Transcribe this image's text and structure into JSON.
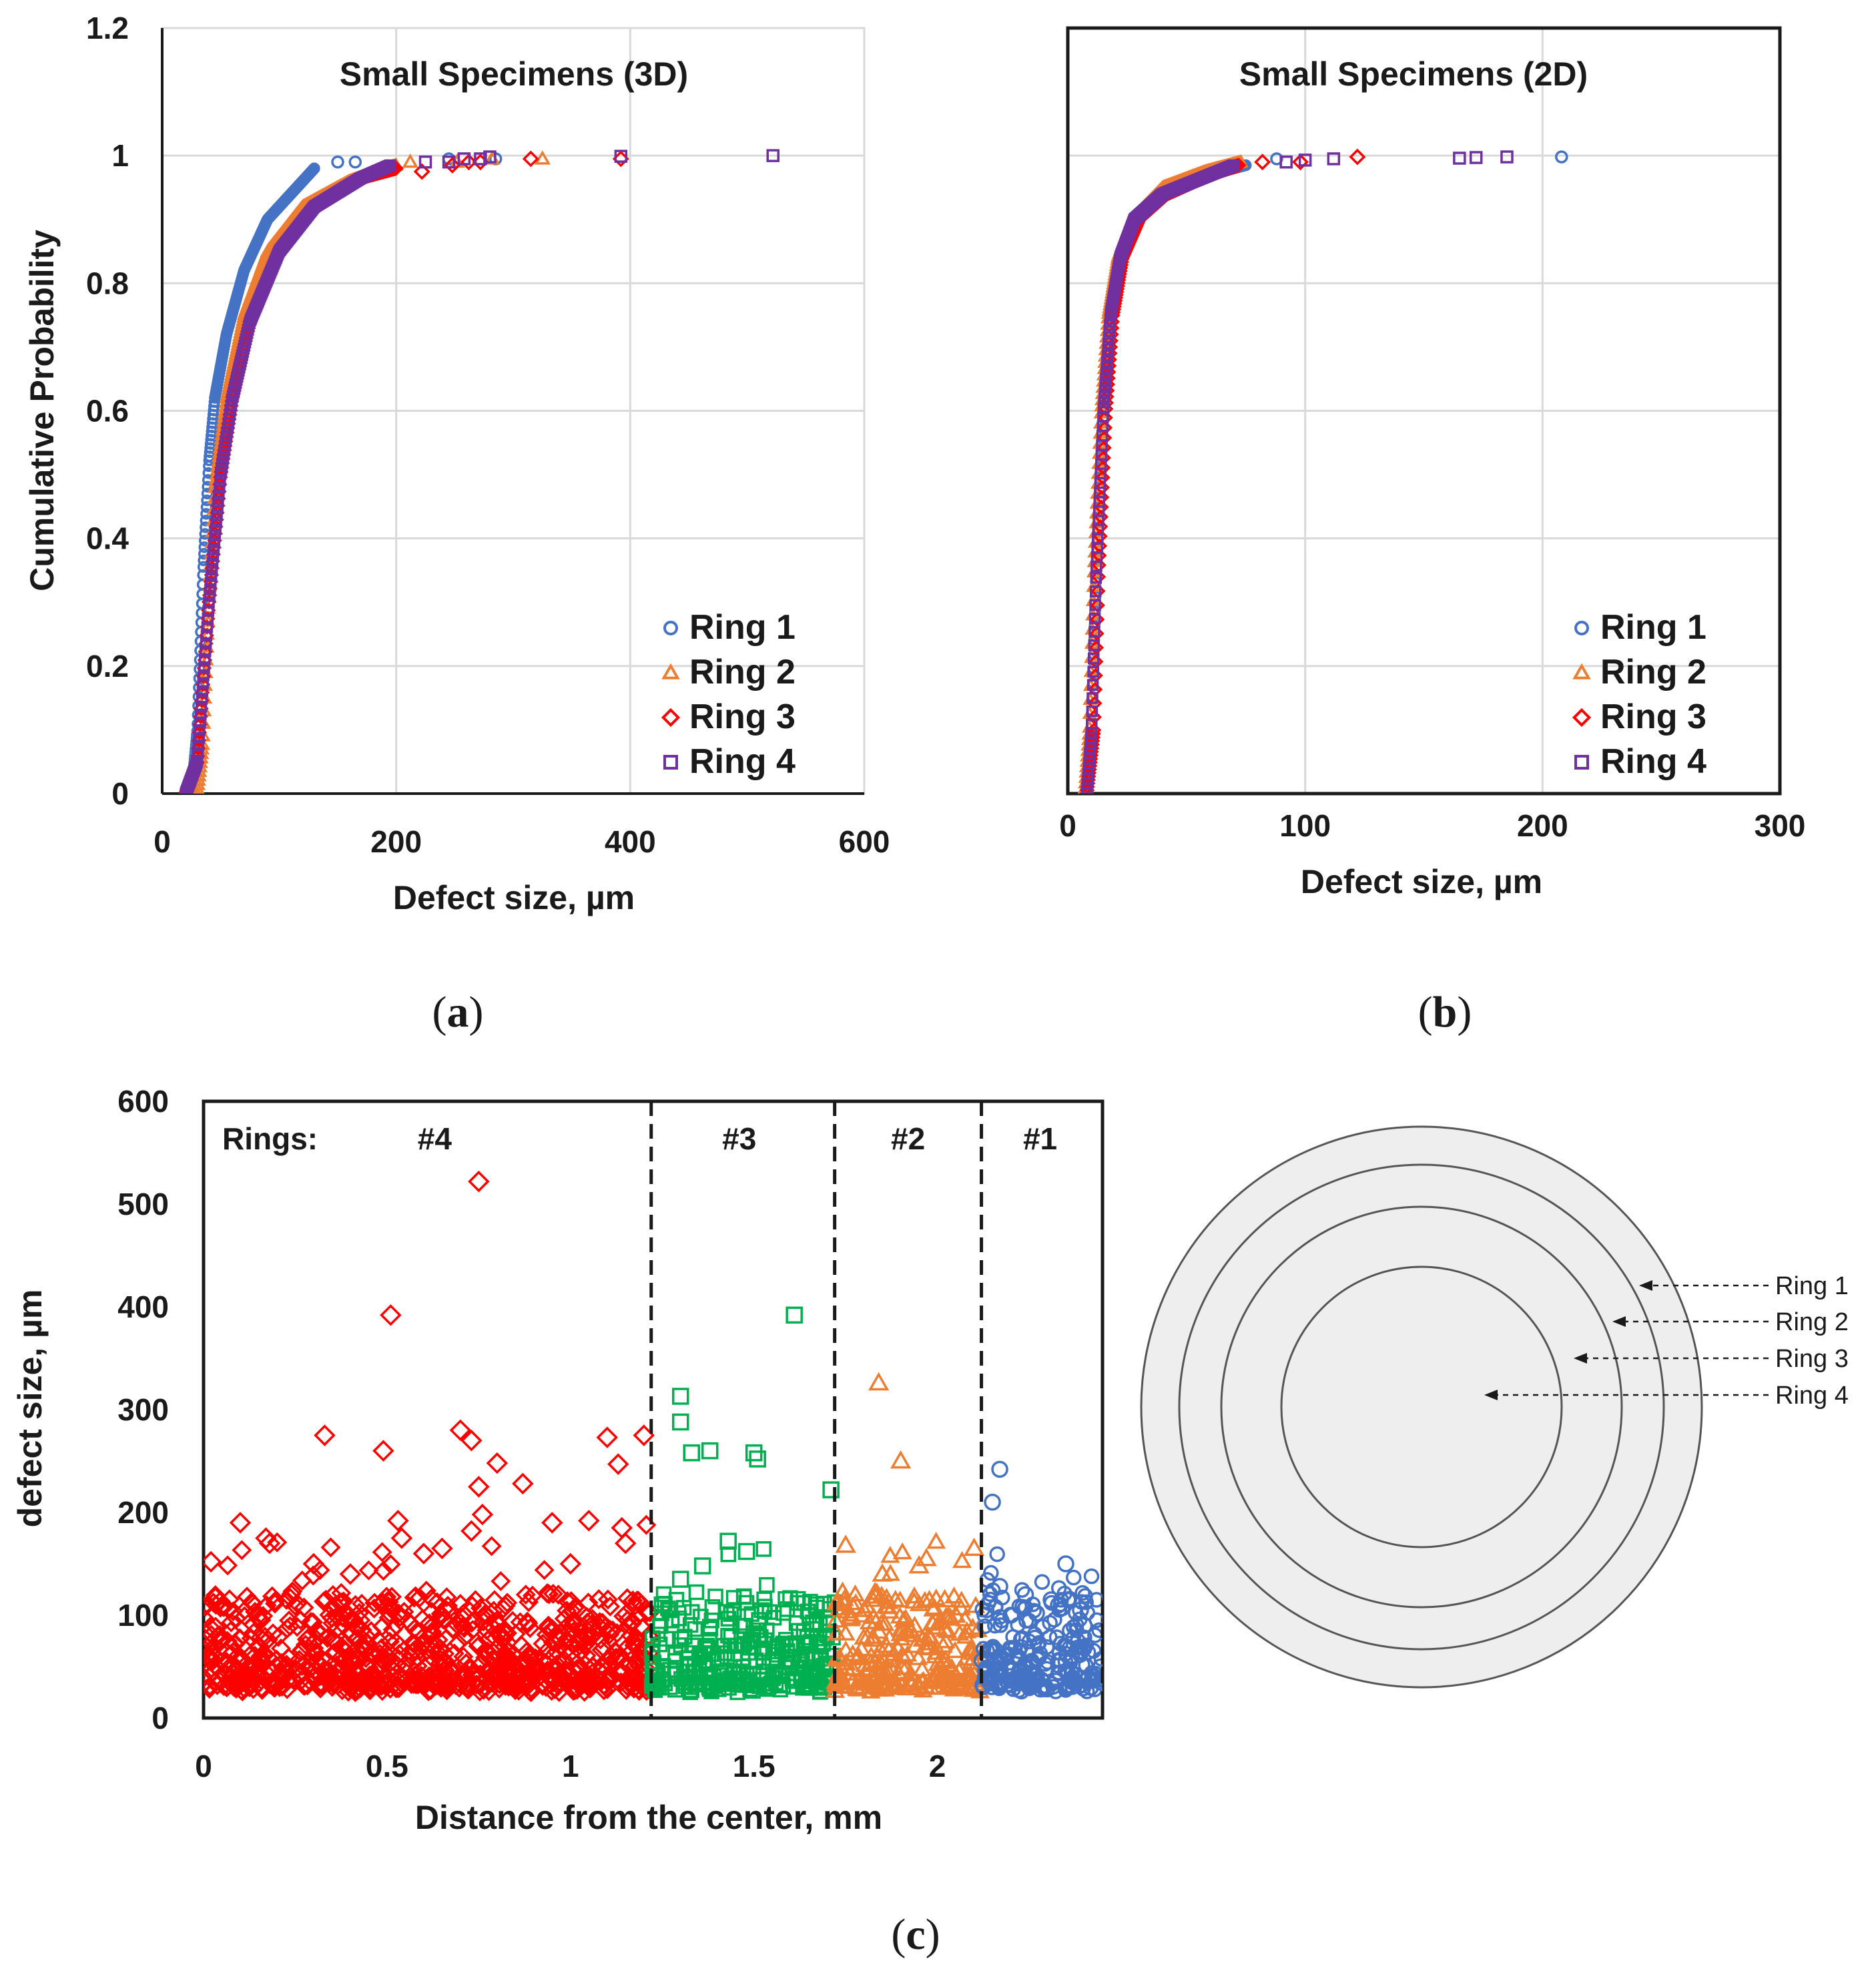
{
  "colors": {
    "ring1": "#4472c4",
    "ring2": "#ed7d31",
    "ring3": "#ff0000",
    "ring4": "#7030a0",
    "ring3_scatter": "#00b050",
    "grid": "#d9d9d9",
    "disk_fill": "#eeeeee",
    "disk_stroke": "#555555"
  },
  "chart_data": [
    {
      "id": "a",
      "type": "scatter",
      "title": "Small Specimens (3D)",
      "xlabel": "Defect size, µm",
      "ylabel": "Cumulative  Probability",
      "xlim": [
        0,
        600
      ],
      "ylim": [
        0,
        1.2
      ],
      "xticks": [
        "0",
        "200",
        "400",
        "600"
      ],
      "yticks": [
        "0",
        "0.2",
        "0.4",
        "0.6",
        "0.8",
        "1",
        "1.2"
      ],
      "caption": "a",
      "legend": "bottom-right",
      "series": [
        {
          "name": "Ring 1",
          "marker": "circle",
          "color": "#4472c4",
          "curve": [
            [
              25,
              0
            ],
            [
              30,
              0.1
            ],
            [
              35,
              0.35
            ],
            [
              40,
              0.52
            ],
            [
              45,
              0.62
            ],
            [
              55,
              0.72
            ],
            [
              70,
              0.82
            ],
            [
              90,
              0.9
            ],
            [
              110,
              0.94
            ],
            [
              130,
              0.98
            ]
          ],
          "outliers": [
            [
              150,
              0.99
            ],
            [
              165,
              0.99
            ],
            [
              245,
              0.995
            ],
            [
              285,
              0.995
            ]
          ]
        },
        {
          "name": "Ring 2",
          "marker": "triangle",
          "color": "#ed7d31",
          "curve": [
            [
              30,
              0
            ],
            [
              35,
              0.08
            ],
            [
              40,
              0.3
            ],
            [
              45,
              0.48
            ],
            [
              55,
              0.62
            ],
            [
              70,
              0.75
            ],
            [
              90,
              0.85
            ],
            [
              120,
              0.92
            ],
            [
              160,
              0.96
            ],
            [
              200,
              0.985
            ]
          ],
          "outliers": [
            [
              212,
              0.99
            ],
            [
              252,
              0.99
            ],
            [
              282,
              0.995
            ],
            [
              325,
              0.995
            ]
          ]
        },
        {
          "name": "Ring 3",
          "marker": "diamond",
          "color": "#ff0000",
          "curve": [
            [
              20,
              0
            ],
            [
              30,
              0.05
            ],
            [
              40,
              0.3
            ],
            [
              50,
              0.5
            ],
            [
              60,
              0.62
            ],
            [
              75,
              0.74
            ],
            [
              100,
              0.85
            ],
            [
              130,
              0.92
            ],
            [
              170,
              0.965
            ],
            [
              200,
              0.98
            ]
          ],
          "outliers": [
            [
              222,
              0.975
            ],
            [
              248,
              0.985
            ],
            [
              262,
              0.99
            ],
            [
              272,
              0.99
            ],
            [
              315,
              0.995
            ],
            [
              392,
              0.995
            ]
          ]
        },
        {
          "name": "Ring 4",
          "marker": "square",
          "color": "#7030a0",
          "curve": [
            [
              20,
              0
            ],
            [
              30,
              0.05
            ],
            [
              40,
              0.3
            ],
            [
              50,
              0.5
            ],
            [
              60,
              0.62
            ],
            [
              75,
              0.74
            ],
            [
              100,
              0.85
            ],
            [
              130,
              0.92
            ],
            [
              170,
              0.965
            ],
            [
              195,
              0.985
            ]
          ],
          "outliers": [
            [
              225,
              0.99
            ],
            [
              245,
              0.99
            ],
            [
              258,
              0.995
            ],
            [
              272,
              0.995
            ],
            [
              280,
              0.998
            ],
            [
              392,
              0.999
            ],
            [
              522,
              1.0
            ]
          ]
        }
      ]
    },
    {
      "id": "b",
      "type": "scatter",
      "title": "Small Specimens (2D)",
      "xlabel": "Defect size, µm",
      "ylabel": "",
      "xlim": [
        0,
        300
      ],
      "ylim": [
        0,
        1.2
      ],
      "xticks": [
        "0",
        "100",
        "200",
        "300"
      ],
      "yticks": [],
      "caption": "b",
      "legend": "bottom-right",
      "series": [
        {
          "name": "Ring 1",
          "marker": "circle",
          "color": "#4472c4",
          "curve": [
            [
              8,
              0
            ],
            [
              10,
              0.1
            ],
            [
              12,
              0.35
            ],
            [
              15,
              0.6
            ],
            [
              18,
              0.75
            ],
            [
              22,
              0.84
            ],
            [
              28,
              0.9
            ],
            [
              40,
              0.94
            ],
            [
              60,
              0.97
            ],
            [
              75,
              0.985
            ]
          ],
          "outliers": [
            [
              88,
              0.995
            ],
            [
              208,
              0.998
            ]
          ]
        },
        {
          "name": "Ring 2",
          "marker": "triangle",
          "color": "#ed7d31",
          "curve": [
            [
              7,
              0
            ],
            [
              9,
              0.1
            ],
            [
              11,
              0.35
            ],
            [
              14,
              0.6
            ],
            [
              17,
              0.75
            ],
            [
              21,
              0.84
            ],
            [
              27,
              0.9
            ],
            [
              40,
              0.95
            ],
            [
              58,
              0.975
            ],
            [
              73,
              0.99
            ]
          ],
          "outliers": []
        },
        {
          "name": "Ring 3",
          "marker": "diamond",
          "color": "#ff0000",
          "curve": [
            [
              8,
              0
            ],
            [
              11,
              0.1
            ],
            [
              13,
              0.35
            ],
            [
              16,
              0.6
            ],
            [
              19,
              0.75
            ],
            [
              23,
              0.84
            ],
            [
              30,
              0.9
            ],
            [
              42,
              0.94
            ],
            [
              60,
              0.97
            ],
            [
              72,
              0.985
            ]
          ],
          "outliers": [
            [
              82,
              0.99
            ],
            [
              98,
              0.99
            ],
            [
              122,
              0.998
            ]
          ]
        },
        {
          "name": "Ring 4",
          "marker": "square",
          "color": "#7030a0",
          "curve": [
            [
              8,
              0
            ],
            [
              10,
              0.1
            ],
            [
              12,
              0.35
            ],
            [
              15,
              0.6
            ],
            [
              18,
              0.75
            ],
            [
              22,
              0.84
            ],
            [
              28,
              0.9
            ],
            [
              40,
              0.94
            ],
            [
              60,
              0.97
            ],
            [
              70,
              0.985
            ]
          ],
          "outliers": [
            [
              92,
              0.99
            ],
            [
              100,
              0.993
            ],
            [
              112,
              0.995
            ],
            [
              165,
              0.996
            ],
            [
              172,
              0.997
            ],
            [
              185,
              0.998
            ]
          ]
        }
      ]
    },
    {
      "id": "c",
      "type": "scatter",
      "title": "",
      "xlabel": "Distance from the center, mm",
      "ylabel": "defect size, µm",
      "xlim": [
        0,
        2.45
      ],
      "ylim": [
        0,
        600
      ],
      "xticks": [
        "0",
        "0.5",
        "1",
        "1.5",
        "2"
      ],
      "yticks": [
        "0",
        "100",
        "200",
        "300",
        "400",
        "500",
        "600"
      ],
      "caption": "c",
      "rings_label": "Rings:",
      "boundaries": [
        1.22,
        1.72,
        2.12,
        2.45
      ],
      "ring_labels": [
        {
          "label": "#4",
          "x": 0.63
        },
        {
          "label": "#3",
          "x": 1.46
        },
        {
          "label": "#2",
          "x": 1.92
        },
        {
          "label": "#1",
          "x": 2.28
        }
      ],
      "series": [
        {
          "name": "Ring 4",
          "marker": "diamond",
          "color": "#ff0000",
          "x_range": [
            0.0,
            1.22
          ],
          "count": 900,
          "outliers": [
            [
              0.75,
              522
            ],
            [
              0.51,
              392
            ],
            [
              0.33,
              275
            ],
            [
              0.49,
              260
            ],
            [
              0.7,
              280
            ],
            [
              0.73,
              270
            ],
            [
              0.87,
              228
            ],
            [
              0.8,
              248
            ],
            [
              0.75,
              225
            ],
            [
              0.76,
              198
            ],
            [
              0.73,
              182
            ],
            [
              0.1,
              190
            ],
            [
              0.17,
              175
            ],
            [
              0.18,
              170
            ],
            [
              0.53,
              192
            ],
            [
              0.54,
              175
            ],
            [
              1.1,
              273
            ],
            [
              1.13,
              247
            ],
            [
              1.05,
              192
            ],
            [
              1.14,
              185
            ],
            [
              1.2,
              275
            ],
            [
              0.02,
              152
            ],
            [
              0.95,
              190
            ],
            [
              0.6,
              160
            ],
            [
              0.3,
              150
            ],
            [
              0.4,
              140
            ],
            [
              1.0,
              150
            ],
            [
              1.15,
              170
            ],
            [
              0.65,
              165
            ]
          ]
        },
        {
          "name": "Ring 3",
          "marker": "square",
          "color": "#00b050",
          "x_range": [
            1.22,
            1.72
          ],
          "count": 320,
          "outliers": [
            [
              1.61,
              392
            ],
            [
              1.3,
              313
            ],
            [
              1.3,
              288
            ],
            [
              1.33,
              258
            ],
            [
              1.38,
              260
            ],
            [
              1.5,
              258
            ],
            [
              1.51,
              252
            ],
            [
              1.71,
              222
            ],
            [
              1.43,
              172
            ],
            [
              1.48,
              162
            ],
            [
              1.36,
              148
            ],
            [
              1.3,
              135
            ],
            [
              1.25,
              110
            ],
            [
              1.67,
              110
            ]
          ]
        },
        {
          "name": "Ring 2",
          "marker": "triangle",
          "color": "#ed7d31",
          "x_range": [
            1.72,
            2.12
          ],
          "count": 260,
          "outliers": [
            [
              1.84,
              326
            ],
            [
              1.9,
              250
            ],
            [
              1.75,
              168
            ],
            [
              2.1,
              165
            ],
            [
              1.97,
              155
            ],
            [
              1.95,
              148
            ],
            [
              1.85,
              140
            ],
            [
              1.83,
              122
            ],
            [
              1.77,
              108
            ],
            [
              2.02,
              115
            ],
            [
              2.05,
              100
            ]
          ]
        },
        {
          "name": "Ring 1",
          "marker": "circle",
          "color": "#4472c4",
          "x_range": [
            2.12,
            2.45
          ],
          "count": 260,
          "outliers": [
            [
              2.17,
              242
            ],
            [
              2.15,
              210
            ],
            [
              2.35,
              150
            ],
            [
              2.17,
              128
            ],
            [
              2.24,
              120
            ],
            [
              2.31,
              115
            ],
            [
              2.33,
              110
            ],
            [
              2.39,
              105
            ],
            [
              2.13,
              100
            ],
            [
              2.2,
              100
            ],
            [
              2.27,
              102
            ],
            [
              2.4,
              90
            ]
          ]
        }
      ]
    }
  ],
  "rings_diagram": {
    "labels": [
      "Ring 1",
      "Ring 2",
      "Ring 3",
      "Ring 4"
    ]
  }
}
